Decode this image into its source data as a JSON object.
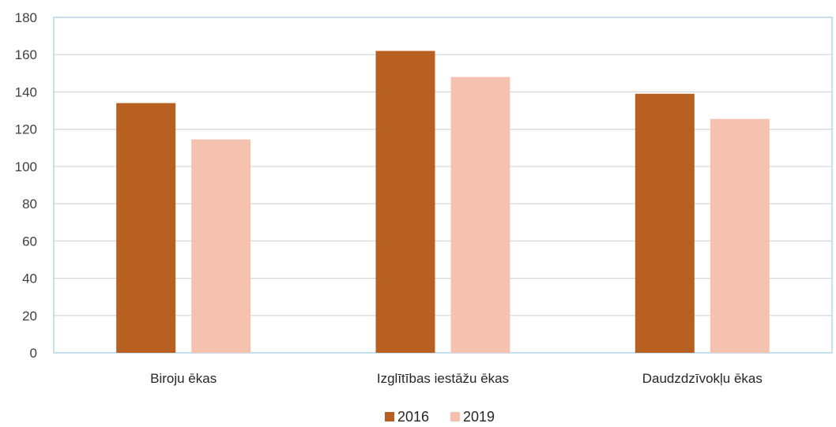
{
  "chart_data": {
    "type": "bar",
    "title": "",
    "xlabel": "",
    "ylabel": "",
    "categories": [
      "Biroju ēkas",
      "Izglītības iestāžu ēkas",
      "Daudzdzīvokļu ēkas"
    ],
    "series": [
      {
        "name": "2016",
        "values": [
          134,
          162,
          139
        ],
        "color": "#b86022"
      },
      {
        "name": "2019",
        "values": [
          114.5,
          148,
          125.5
        ],
        "color": "#f5c2b0"
      }
    ],
    "ylim": [
      0,
      180
    ],
    "yticks": [
      0,
      20,
      40,
      60,
      80,
      100,
      120,
      140,
      160,
      180
    ],
    "grid": true,
    "legend_position": "bottom",
    "colors": {
      "grid": "#d9d9d9",
      "plot_border": "#a9d3e6"
    }
  }
}
